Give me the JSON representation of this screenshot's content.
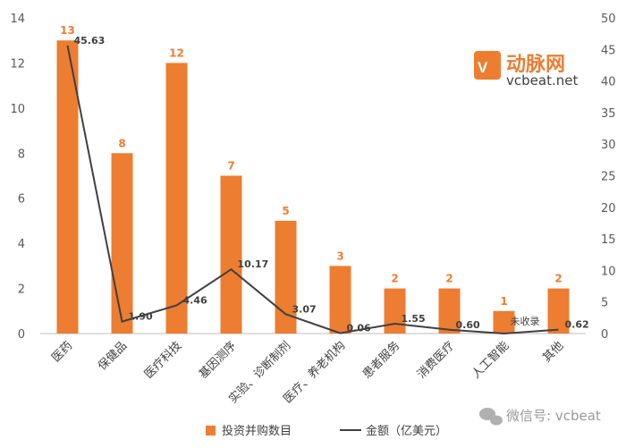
{
  "chart_data": {
    "type": "bar",
    "categories": [
      "医药",
      "保健品",
      "医疗科技",
      "基因测序",
      "实验、诊断制剂",
      "医疗、养老机构",
      "患者服务",
      "消费医疗",
      "人工智能",
      "其他"
    ],
    "series": [
      {
        "name": "投资并购数目",
        "type": "bar",
        "axis": "left",
        "color": "#ED7D31",
        "values": [
          13,
          8,
          12,
          7,
          5,
          3,
          2,
          2,
          1,
          2
        ],
        "labels": [
          "13",
          "8",
          "12",
          "7",
          "5",
          "3",
          "2",
          "2",
          "1",
          "2"
        ]
      },
      {
        "name": "金额（亿美元）",
        "type": "line",
        "axis": "right",
        "color": "#404040",
        "values": [
          45.63,
          1.9,
          4.46,
          10.17,
          3.07,
          0.06,
          1.55,
          0.6,
          0,
          0.62
        ],
        "labels": [
          "45.63",
          "1.90",
          "4.46",
          "10.17",
          "3.07",
          "0.06",
          "1.55",
          "0.60",
          "未收录",
          "0.62"
        ]
      }
    ],
    "ylim_left": [
      0,
      14
    ],
    "yticks_left": [
      "0",
      "2",
      "4",
      "6",
      "8",
      "10",
      "12",
      "14"
    ],
    "ylim_right": [
      0,
      50
    ],
    "yticks_right": [
      "0",
      "5",
      "10",
      "15",
      "20",
      "25",
      "30",
      "35",
      "40",
      "45",
      "50"
    ],
    "grid": false,
    "legend_position": "bottom"
  },
  "logo": {
    "name": "动脉网",
    "url": "vcbeat.net"
  },
  "watermark": {
    "text": "微信号: vcbeat"
  },
  "colors": {
    "bar": "#ED7D31",
    "line": "#404040",
    "axis": "#BFBFBF"
  }
}
